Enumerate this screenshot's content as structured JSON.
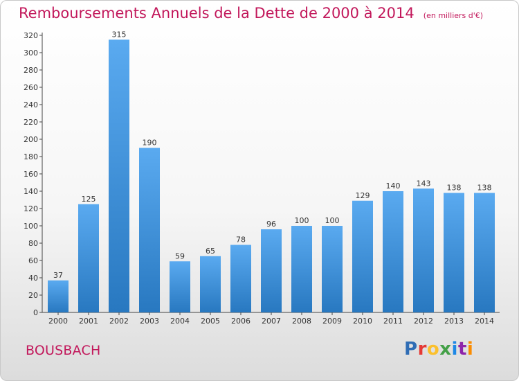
{
  "chart_data": {
    "type": "bar",
    "title": "Remboursements Annuels de la Dette de 2000 à 2014",
    "subtitle": "(en milliers d'€)",
    "categories": [
      "2000",
      "2001",
      "2002",
      "2003",
      "2004",
      "2005",
      "2006",
      "2007",
      "2008",
      "2009",
      "2010",
      "2011",
      "2012",
      "2013",
      "2014"
    ],
    "values": [
      37,
      125,
      315,
      190,
      59,
      65,
      78,
      96,
      100,
      100,
      129,
      140,
      143,
      138,
      138
    ],
    "data_labels": [
      "37",
      "125",
      "315",
      "190",
      "59",
      "65",
      "78",
      "96",
      "100",
      "100",
      "129",
      "140",
      "143",
      "138",
      "138"
    ],
    "yticks": [
      "0",
      "20",
      "40",
      "60",
      "80",
      "100",
      "120",
      "140",
      "160",
      "180",
      "200",
      "220",
      "240",
      "260",
      "280",
      "300",
      "320"
    ],
    "ylim": [
      0,
      320
    ],
    "grid": false,
    "bar_color": "#3d8fd6"
  },
  "footer": {
    "city": "BOUSBACH",
    "logo": [
      "P",
      "r",
      "o",
      "x",
      "i",
      "t",
      "i"
    ]
  }
}
